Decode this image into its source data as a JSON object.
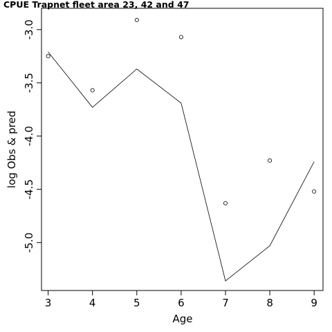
{
  "chart_data": {
    "type": "scatter+line",
    "title": "CPUE Trapnet fleet area 23, 42 and 47",
    "xlabel": "Age",
    "ylabel": "log Obs & pred",
    "x": [
      3,
      4,
      5,
      6,
      7,
      8,
      9
    ],
    "series": [
      {
        "kind": "points",
        "marker": "open-circle",
        "values": [
          -3.25,
          -3.57,
          -2.91,
          -3.07,
          -4.63,
          -4.23,
          -4.52
        ]
      },
      {
        "kind": "line",
        "values": [
          -3.21,
          -3.73,
          -3.37,
          -3.69,
          -5.36,
          -5.03,
          -4.24
        ]
      }
    ],
    "xlim": [
      2.85,
      9.2
    ],
    "ylim": [
      -5.45,
      -2.8
    ],
    "xticks": [
      3,
      4,
      5,
      6,
      7,
      8,
      9
    ],
    "yticks": [
      -3.0,
      -3.5,
      -4.0,
      -4.5,
      -5.0
    ],
    "ytick_labels": [
      "-3.0",
      "-3.5",
      "-4.0",
      "-4.5",
      "-5.0"
    ],
    "grid": false,
    "legend": "none",
    "colors": {
      "marks": "#000000",
      "background": "#ffffff"
    }
  }
}
